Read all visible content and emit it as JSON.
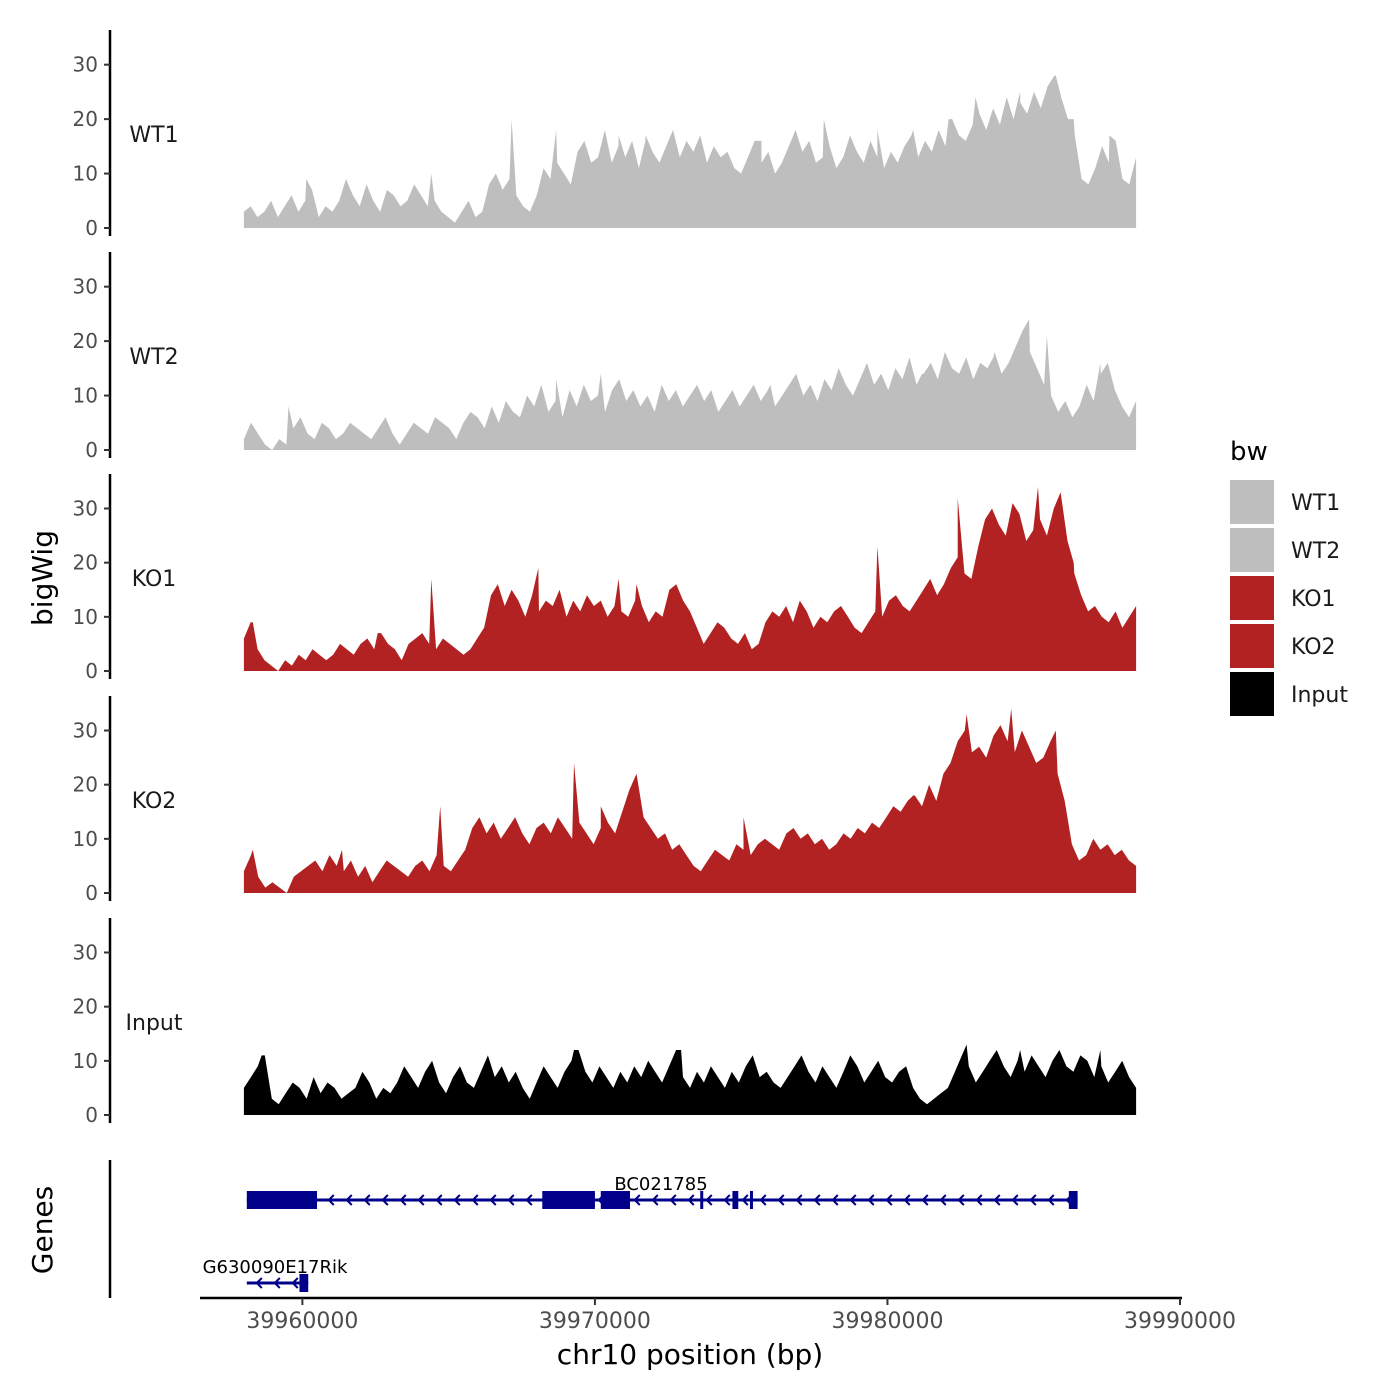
{
  "chart_data": {
    "type": "area",
    "region": {
      "chrom": "chr10",
      "start": 39958000,
      "end": 39988500
    },
    "xlabel": "chr10 position (bp)",
    "xlim": [
      39956500,
      39990000
    ],
    "x_ticks": [
      39960000,
      39970000,
      39980000,
      39990000
    ],
    "x_tick_labels": [
      "39960000",
      "39970000",
      "39980000",
      "39990000"
    ],
    "ylabel": "bigWig",
    "ylim": [
      0,
      36
    ],
    "y_ticks": [
      0,
      10,
      20,
      30
    ],
    "y_tick_labels": [
      "0",
      "10",
      "20",
      "30"
    ],
    "legend": {
      "title": "bw",
      "position": "right",
      "entries": [
        "WT1",
        "WT2",
        "KO1",
        "KO2",
        "Input"
      ]
    },
    "series": [
      {
        "name": "WT1",
        "color": "#bebebe",
        "values": [
          3,
          4,
          2,
          3,
          5,
          2,
          4,
          6,
          3,
          5,
          7,
          2,
          4,
          3,
          5,
          9,
          6,
          4,
          8,
          5,
          3,
          7,
          6,
          4,
          5,
          8,
          6,
          4,
          5,
          3,
          2,
          1,
          3,
          5,
          2,
          3,
          8,
          10,
          7,
          9,
          6,
          4,
          3,
          6,
          11,
          9,
          12,
          10,
          8,
          14,
          16,
          12,
          13,
          18,
          12,
          15,
          13,
          16,
          11,
          17,
          14,
          12,
          15,
          18,
          13,
          16,
          14,
          17,
          12,
          15,
          13,
          14,
          11,
          10,
          13,
          16,
          12,
          14,
          10,
          12,
          15,
          18,
          14,
          16,
          12,
          13,
          15,
          11,
          13,
          17,
          14,
          12,
          16,
          13,
          11,
          14,
          12,
          15,
          17,
          13,
          16,
          14,
          18,
          15,
          20,
          17,
          16,
          19,
          21,
          18,
          22,
          19,
          24,
          20,
          23,
          21,
          25,
          22,
          26,
          28,
          24,
          20,
          17,
          9,
          8,
          11,
          15,
          12,
          16,
          9,
          8,
          13
        ],
        "peaks": [
          [
            0.07,
            9
          ],
          [
            0.21,
            10
          ],
          [
            0.3,
            20
          ],
          [
            0.35,
            18
          ],
          [
            0.42,
            17
          ],
          [
            0.45,
            16
          ],
          [
            0.58,
            16
          ],
          [
            0.65,
            20
          ],
          [
            0.71,
            18
          ],
          [
            0.75,
            18
          ],
          [
            0.79,
            20
          ],
          [
            0.82,
            24
          ],
          [
            0.87,
            25
          ],
          [
            0.91,
            28
          ],
          [
            0.93,
            20
          ],
          [
            0.97,
            17
          ]
        ]
      },
      {
        "name": "WT2",
        "color": "#bebebe",
        "values": [
          2,
          5,
          3,
          1,
          0,
          2,
          1,
          4,
          6,
          3,
          2,
          5,
          4,
          2,
          3,
          5,
          4,
          3,
          2,
          4,
          6,
          3,
          1,
          3,
          5,
          4,
          3,
          6,
          5,
          4,
          2,
          5,
          7,
          6,
          4,
          8,
          5,
          9,
          7,
          6,
          10,
          8,
          12,
          7,
          9,
          6,
          11,
          8,
          12,
          9,
          10,
          7,
          11,
          13,
          9,
          11,
          8,
          10,
          7,
          12,
          9,
          11,
          8,
          10,
          12,
          9,
          11,
          7,
          9,
          11,
          8,
          10,
          12,
          9,
          11,
          8,
          10,
          12,
          14,
          10,
          12,
          9,
          13,
          11,
          15,
          12,
          10,
          13,
          16,
          12,
          14,
          11,
          15,
          13,
          17,
          12,
          14,
          16,
          13,
          18,
          15,
          14,
          17,
          13,
          16,
          15,
          18,
          14,
          16,
          19,
          22,
          18,
          15,
          12,
          10,
          7,
          9,
          6,
          8,
          12,
          9,
          14,
          16,
          11,
          8,
          6,
          9
        ],
        "peaks": [
          [
            0.05,
            8
          ],
          [
            0.35,
            13
          ],
          [
            0.4,
            14
          ],
          [
            0.59,
            12
          ],
          [
            0.76,
            14
          ],
          [
            0.84,
            17
          ],
          [
            0.88,
            24
          ],
          [
            0.9,
            21
          ],
          [
            0.96,
            16
          ]
        ]
      },
      {
        "name": "KO1",
        "color": "#b22222",
        "values": [
          6,
          9,
          4,
          2,
          1,
          0,
          2,
          1,
          3,
          2,
          4,
          3,
          2,
          3,
          5,
          4,
          3,
          5,
          6,
          4,
          7,
          5,
          4,
          2,
          5,
          6,
          7,
          5,
          4,
          6,
          5,
          4,
          3,
          4,
          6,
          8,
          14,
          16,
          12,
          15,
          13,
          10,
          14,
          11,
          13,
          12,
          15,
          10,
          13,
          11,
          14,
          12,
          13,
          10,
          12,
          11,
          10,
          13,
          12,
          9,
          11,
          10,
          15,
          16,
          13,
          11,
          8,
          5,
          7,
          9,
          8,
          6,
          5,
          7,
          4,
          5,
          9,
          11,
          10,
          12,
          9,
          13,
          11,
          8,
          10,
          9,
          11,
          12,
          10,
          8,
          7,
          9,
          11,
          10,
          13,
          14,
          12,
          11,
          13,
          15,
          17,
          14,
          16,
          19,
          21,
          18,
          17,
          23,
          28,
          30,
          27,
          25,
          31,
          29,
          24,
          26,
          28,
          25,
          30,
          33,
          24,
          18,
          14,
          11,
          12,
          10,
          9,
          11,
          8,
          10,
          12
        ],
        "peaks": [
          [
            0.01,
            9
          ],
          [
            0.15,
            7
          ],
          [
            0.21,
            17
          ],
          [
            0.33,
            19
          ],
          [
            0.42,
            17
          ],
          [
            0.44,
            16
          ],
          [
            0.71,
            23
          ],
          [
            0.8,
            32
          ],
          [
            0.89,
            34
          ],
          [
            0.93,
            20
          ]
        ]
      },
      {
        "name": "KO2",
        "color": "#b22222",
        "values": [
          4,
          7,
          3,
          1,
          2,
          1,
          0,
          3,
          4,
          5,
          6,
          4,
          7,
          5,
          4,
          6,
          3,
          5,
          2,
          4,
          6,
          5,
          4,
          3,
          5,
          6,
          4,
          7,
          5,
          4,
          6,
          8,
          12,
          14,
          11,
          13,
          10,
          12,
          14,
          11,
          9,
          12,
          13,
          11,
          14,
          12,
          10,
          13,
          11,
          9,
          12,
          13,
          11,
          15,
          19,
          22,
          14,
          12,
          10,
          11,
          8,
          9,
          7,
          5,
          4,
          6,
          8,
          7,
          6,
          9,
          8,
          7,
          9,
          10,
          9,
          8,
          11,
          12,
          10,
          11,
          9,
          10,
          8,
          9,
          11,
          10,
          12,
          11,
          13,
          12,
          14,
          16,
          15,
          17,
          18,
          16,
          20,
          17,
          22,
          24,
          28,
          30,
          26,
          27,
          25,
          29,
          31,
          28,
          26,
          30,
          27,
          24,
          25,
          28,
          22,
          17,
          9,
          6,
          7,
          10,
          8,
          9,
          7,
          8,
          6,
          5
        ],
        "peaks": [
          [
            0.01,
            8
          ],
          [
            0.11,
            8
          ],
          [
            0.22,
            16
          ],
          [
            0.37,
            24
          ],
          [
            0.4,
            16
          ],
          [
            0.56,
            14
          ],
          [
            0.75,
            18
          ],
          [
            0.81,
            33
          ],
          [
            0.86,
            34
          ],
          [
            0.91,
            30
          ]
        ]
      },
      {
        "name": "Input",
        "color": "#000000",
        "values": [
          5,
          7,
          9,
          11,
          3,
          2,
          4,
          6,
          5,
          3,
          7,
          4,
          6,
          5,
          3,
          4,
          5,
          8,
          6,
          3,
          5,
          4,
          6,
          9,
          7,
          5,
          8,
          10,
          6,
          4,
          7,
          9,
          6,
          5,
          8,
          11,
          7,
          9,
          6,
          8,
          5,
          3,
          6,
          9,
          7,
          5,
          8,
          10,
          12,
          8,
          6,
          9,
          7,
          5,
          8,
          6,
          9,
          7,
          10,
          8,
          6,
          9,
          12,
          7,
          5,
          8,
          6,
          9,
          7,
          5,
          8,
          6,
          9,
          11,
          7,
          8,
          6,
          5,
          7,
          9,
          11,
          8,
          6,
          9,
          7,
          5,
          8,
          11,
          9,
          6,
          8,
          10,
          7,
          6,
          8,
          9,
          5,
          3,
          2,
          3,
          4,
          5,
          8,
          11,
          9,
          6,
          8,
          10,
          12,
          9,
          7,
          10,
          8,
          11,
          9,
          7,
          10,
          12,
          9,
          8,
          11,
          10,
          7,
          9,
          6,
          8,
          10,
          7,
          5
        ],
        "peaks": [
          [
            0.02,
            11
          ],
          [
            0.37,
            12
          ],
          [
            0.49,
            12
          ],
          [
            0.81,
            13
          ],
          [
            0.87,
            12
          ],
          [
            0.96,
            12
          ]
        ]
      }
    ],
    "genes_track": {
      "label": "Genes",
      "color": "#00008b",
      "genes": [
        {
          "name": "BC021785",
          "start": 39958100,
          "end": 39986500,
          "strand": "-",
          "exons": [
            [
              39958100,
              39960500
            ],
            [
              39968200,
              39970000
            ],
            [
              39970200,
              39971200
            ],
            [
              39973600,
              39973700
            ],
            [
              39974700,
              39974900
            ],
            [
              39975300,
              39975400
            ],
            [
              39986200,
              39986500
            ]
          ]
        },
        {
          "name": "G630090E17Rik",
          "start": 39958100,
          "end": 39960200,
          "strand": "-",
          "exons": [
            [
              39959900,
              39960200
            ]
          ]
        }
      ]
    }
  }
}
